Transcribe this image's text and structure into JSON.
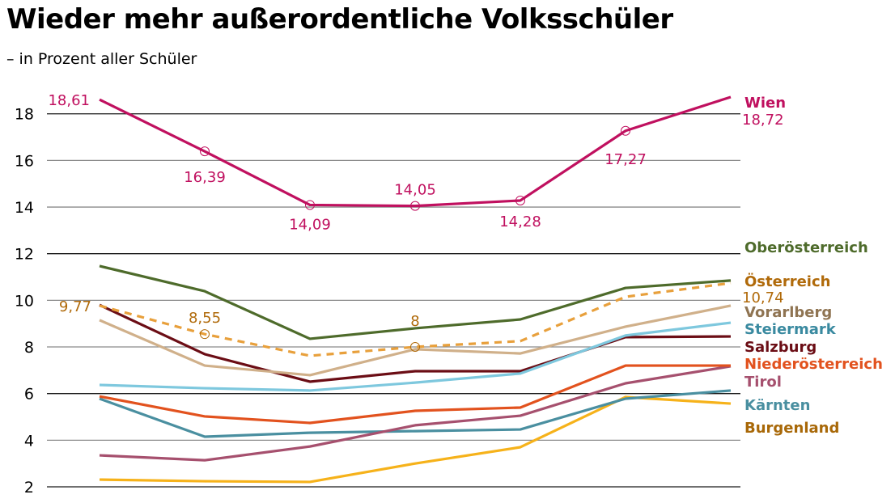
{
  "title": "Wieder mehr außerordentliche Volksschüler",
  "subtitle": "– in Prozent aller Schüler",
  "chart_data": {
    "type": "line",
    "title": "Wieder mehr außerordentliche Volksschüler",
    "subtitle": "– in Prozent aller Schüler",
    "xlabel": "",
    "ylabel": "",
    "x_points": 7,
    "ylim": [
      2,
      19
    ],
    "yticks": [
      2,
      4,
      6,
      8,
      10,
      12,
      14,
      16,
      18
    ],
    "ytick_labels": [
      "2",
      "4",
      "6",
      "8",
      "10",
      "12",
      "14",
      "16",
      "18"
    ],
    "grid": true,
    "legend": "right (direct labels at line ends)",
    "series": [
      {
        "name": "Wien",
        "color": "#c0105f",
        "dashed": false,
        "values": [
          18.61,
          16.39,
          14.09,
          14.05,
          14.28,
          17.27,
          18.72
        ],
        "labels": [
          "18,61",
          "16,39",
          "14,09",
          "14,05",
          "14,28",
          "17,27",
          "18,72"
        ],
        "markers": [
          false,
          true,
          true,
          true,
          true,
          true,
          false
        ]
      },
      {
        "name": "Oberösterreich",
        "color": "#4e6b2b",
        "dashed": false,
        "values": [
          11.47,
          10.39,
          8.35,
          8.8,
          9.18,
          10.53,
          10.85
        ]
      },
      {
        "name": "Österreich",
        "color": "#e8a03c",
        "label_color": "#b06a0a",
        "dashed": true,
        "values": [
          9.77,
          8.55,
          7.62,
          8.0,
          8.25,
          10.15,
          10.74
        ],
        "labels": [
          "9,77",
          "8,55",
          "",
          "8",
          "",
          "",
          "10,74"
        ],
        "markers": [
          false,
          true,
          false,
          true,
          false,
          false,
          false
        ]
      },
      {
        "name": "Vorarlberg",
        "color": "#d0b08a",
        "label_color": "#8f7452",
        "dashed": false,
        "values": [
          9.15,
          7.2,
          6.79,
          7.9,
          7.72,
          8.87,
          9.77
        ]
      },
      {
        "name": "Steiermark",
        "color": "#7ec8de",
        "label_color": "#3a8aa0",
        "dashed": false,
        "values": [
          6.37,
          6.23,
          6.13,
          6.47,
          6.86,
          8.49,
          9.04
        ]
      },
      {
        "name": "Salzburg",
        "color": "#6b0d15",
        "dashed": false,
        "values": [
          9.8,
          7.69,
          6.51,
          6.96,
          6.96,
          8.42,
          8.45
        ]
      },
      {
        "name": "Niederösterreich",
        "color": "#e2521e",
        "dashed": false,
        "values": [
          5.88,
          5.02,
          4.74,
          5.26,
          5.4,
          7.2,
          7.2
        ]
      },
      {
        "name": "Tirol",
        "color": "#a6506e",
        "dashed": false,
        "values": [
          3.35,
          3.14,
          3.73,
          4.64,
          5.05,
          6.44,
          7.17
        ]
      },
      {
        "name": "Kärnten",
        "color": "#4a8fa0",
        "dashed": false,
        "values": [
          5.78,
          4.15,
          4.32,
          4.39,
          4.46,
          5.78,
          6.13
        ]
      },
      {
        "name": "Burgenland",
        "color": "#f6b21a",
        "label_color": "#a86808",
        "dashed": false,
        "values": [
          2.31,
          2.24,
          2.21,
          3.0,
          3.7,
          5.85,
          5.57
        ]
      }
    ]
  }
}
